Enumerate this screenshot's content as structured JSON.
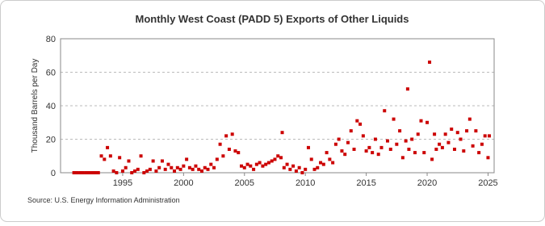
{
  "chart_data": {
    "type": "scatter",
    "title": "Monthly West Coast (PADD 5) Exports of Other Liquids",
    "y_label": "Thousand Barrels per Day",
    "source": "Source: U.S. Energy Information Administration",
    "color": "#cc0000",
    "grid": true,
    "xlim": [
      1989.9,
      2025.5
    ],
    "xticks": [
      1995,
      2000,
      2005,
      2010,
      2015,
      2020,
      2025
    ],
    "ylim": [
      0,
      80
    ],
    "yticks": [
      0,
      20,
      40,
      60,
      80
    ],
    "x": [
      1991,
      1991.25,
      1991.5,
      1991.75,
      1992,
      1992.25,
      1992.5,
      1992.75,
      1993,
      1993.25,
      1993.5,
      1993.75,
      1994,
      1994.25,
      1994.5,
      1994.75,
      1995,
      1995.25,
      1995.5,
      1995.75,
      1996,
      1996.25,
      1996.5,
      1996.75,
      1997,
      1997.25,
      1997.5,
      1997.75,
      1998,
      1998.25,
      1998.5,
      1998.75,
      1999,
      1999.25,
      1999.5,
      1999.75,
      2000,
      2000.25,
      2000.5,
      2000.75,
      2001,
      2001.25,
      2001.5,
      2001.75,
      2002,
      2002.25,
      2002.5,
      2002.75,
      2003,
      2003.25,
      2003.5,
      2003.75,
      2004,
      2004.25,
      2004.5,
      2004.75,
      2005,
      2005.25,
      2005.5,
      2005.75,
      2006,
      2006.25,
      2006.5,
      2006.75,
      2007,
      2007.25,
      2007.5,
      2007.75,
      2008,
      2008.1,
      2008.25,
      2008.5,
      2008.75,
      2009,
      2009.25,
      2009.5,
      2009.75,
      2010,
      2010.25,
      2010.5,
      2010.75,
      2011,
      2011.25,
      2011.5,
      2011.75,
      2012,
      2012.25,
      2012.5,
      2012.75,
      2013,
      2013.25,
      2013.5,
      2013.75,
      2014,
      2014.25,
      2014.5,
      2014.75,
      2015,
      2015.25,
      2015.5,
      2015.75,
      2016,
      2016.25,
      2016.5,
      2016.75,
      2017,
      2017.25,
      2017.5,
      2017.75,
      2018,
      2018.25,
      2018.4,
      2018.5,
      2018.75,
      2019,
      2019.25,
      2019.5,
      2019.75,
      2020,
      2020.2,
      2020.4,
      2020.6,
      2020.75,
      2021,
      2021.25,
      2021.5,
      2021.75,
      2022,
      2022.25,
      2022.5,
      2022.75,
      2023,
      2023.25,
      2023.5,
      2023.75,
      2024,
      2024.25,
      2024.5,
      2024.75,
      2025,
      2025.1
    ],
    "values": [
      0,
      0,
      0,
      0,
      0,
      0,
      0,
      0,
      0,
      10,
      8,
      15,
      10,
      1,
      0,
      9,
      1,
      3,
      7,
      0,
      1,
      2,
      10,
      0,
      1,
      2,
      7,
      1,
      3,
      7,
      2,
      5,
      3,
      1,
      3,
      2,
      4,
      8,
      3,
      2,
      4,
      2,
      1,
      3,
      2,
      5,
      3,
      8,
      17,
      10,
      22,
      14,
      23,
      13,
      12,
      4,
      3,
      5,
      4,
      2,
      5,
      6,
      4,
      5,
      6,
      7,
      8,
      10,
      9,
      24,
      3,
      5,
      2,
      4,
      1,
      3,
      0,
      2,
      15,
      8,
      2,
      3,
      6,
      5,
      12,
      8,
      6,
      17,
      20,
      13,
      11,
      18,
      25,
      14,
      31,
      29,
      22,
      13,
      15,
      12,
      20,
      11,
      15,
      37,
      19,
      14,
      32,
      17,
      25,
      9,
      19,
      50,
      14,
      20,
      12,
      23,
      31,
      12,
      30,
      66,
      8,
      23,
      14,
      17,
      15,
      23,
      18,
      26,
      14,
      24,
      20,
      13,
      25,
      32,
      16,
      25,
      12,
      17,
      22,
      9,
      22
    ]
  }
}
